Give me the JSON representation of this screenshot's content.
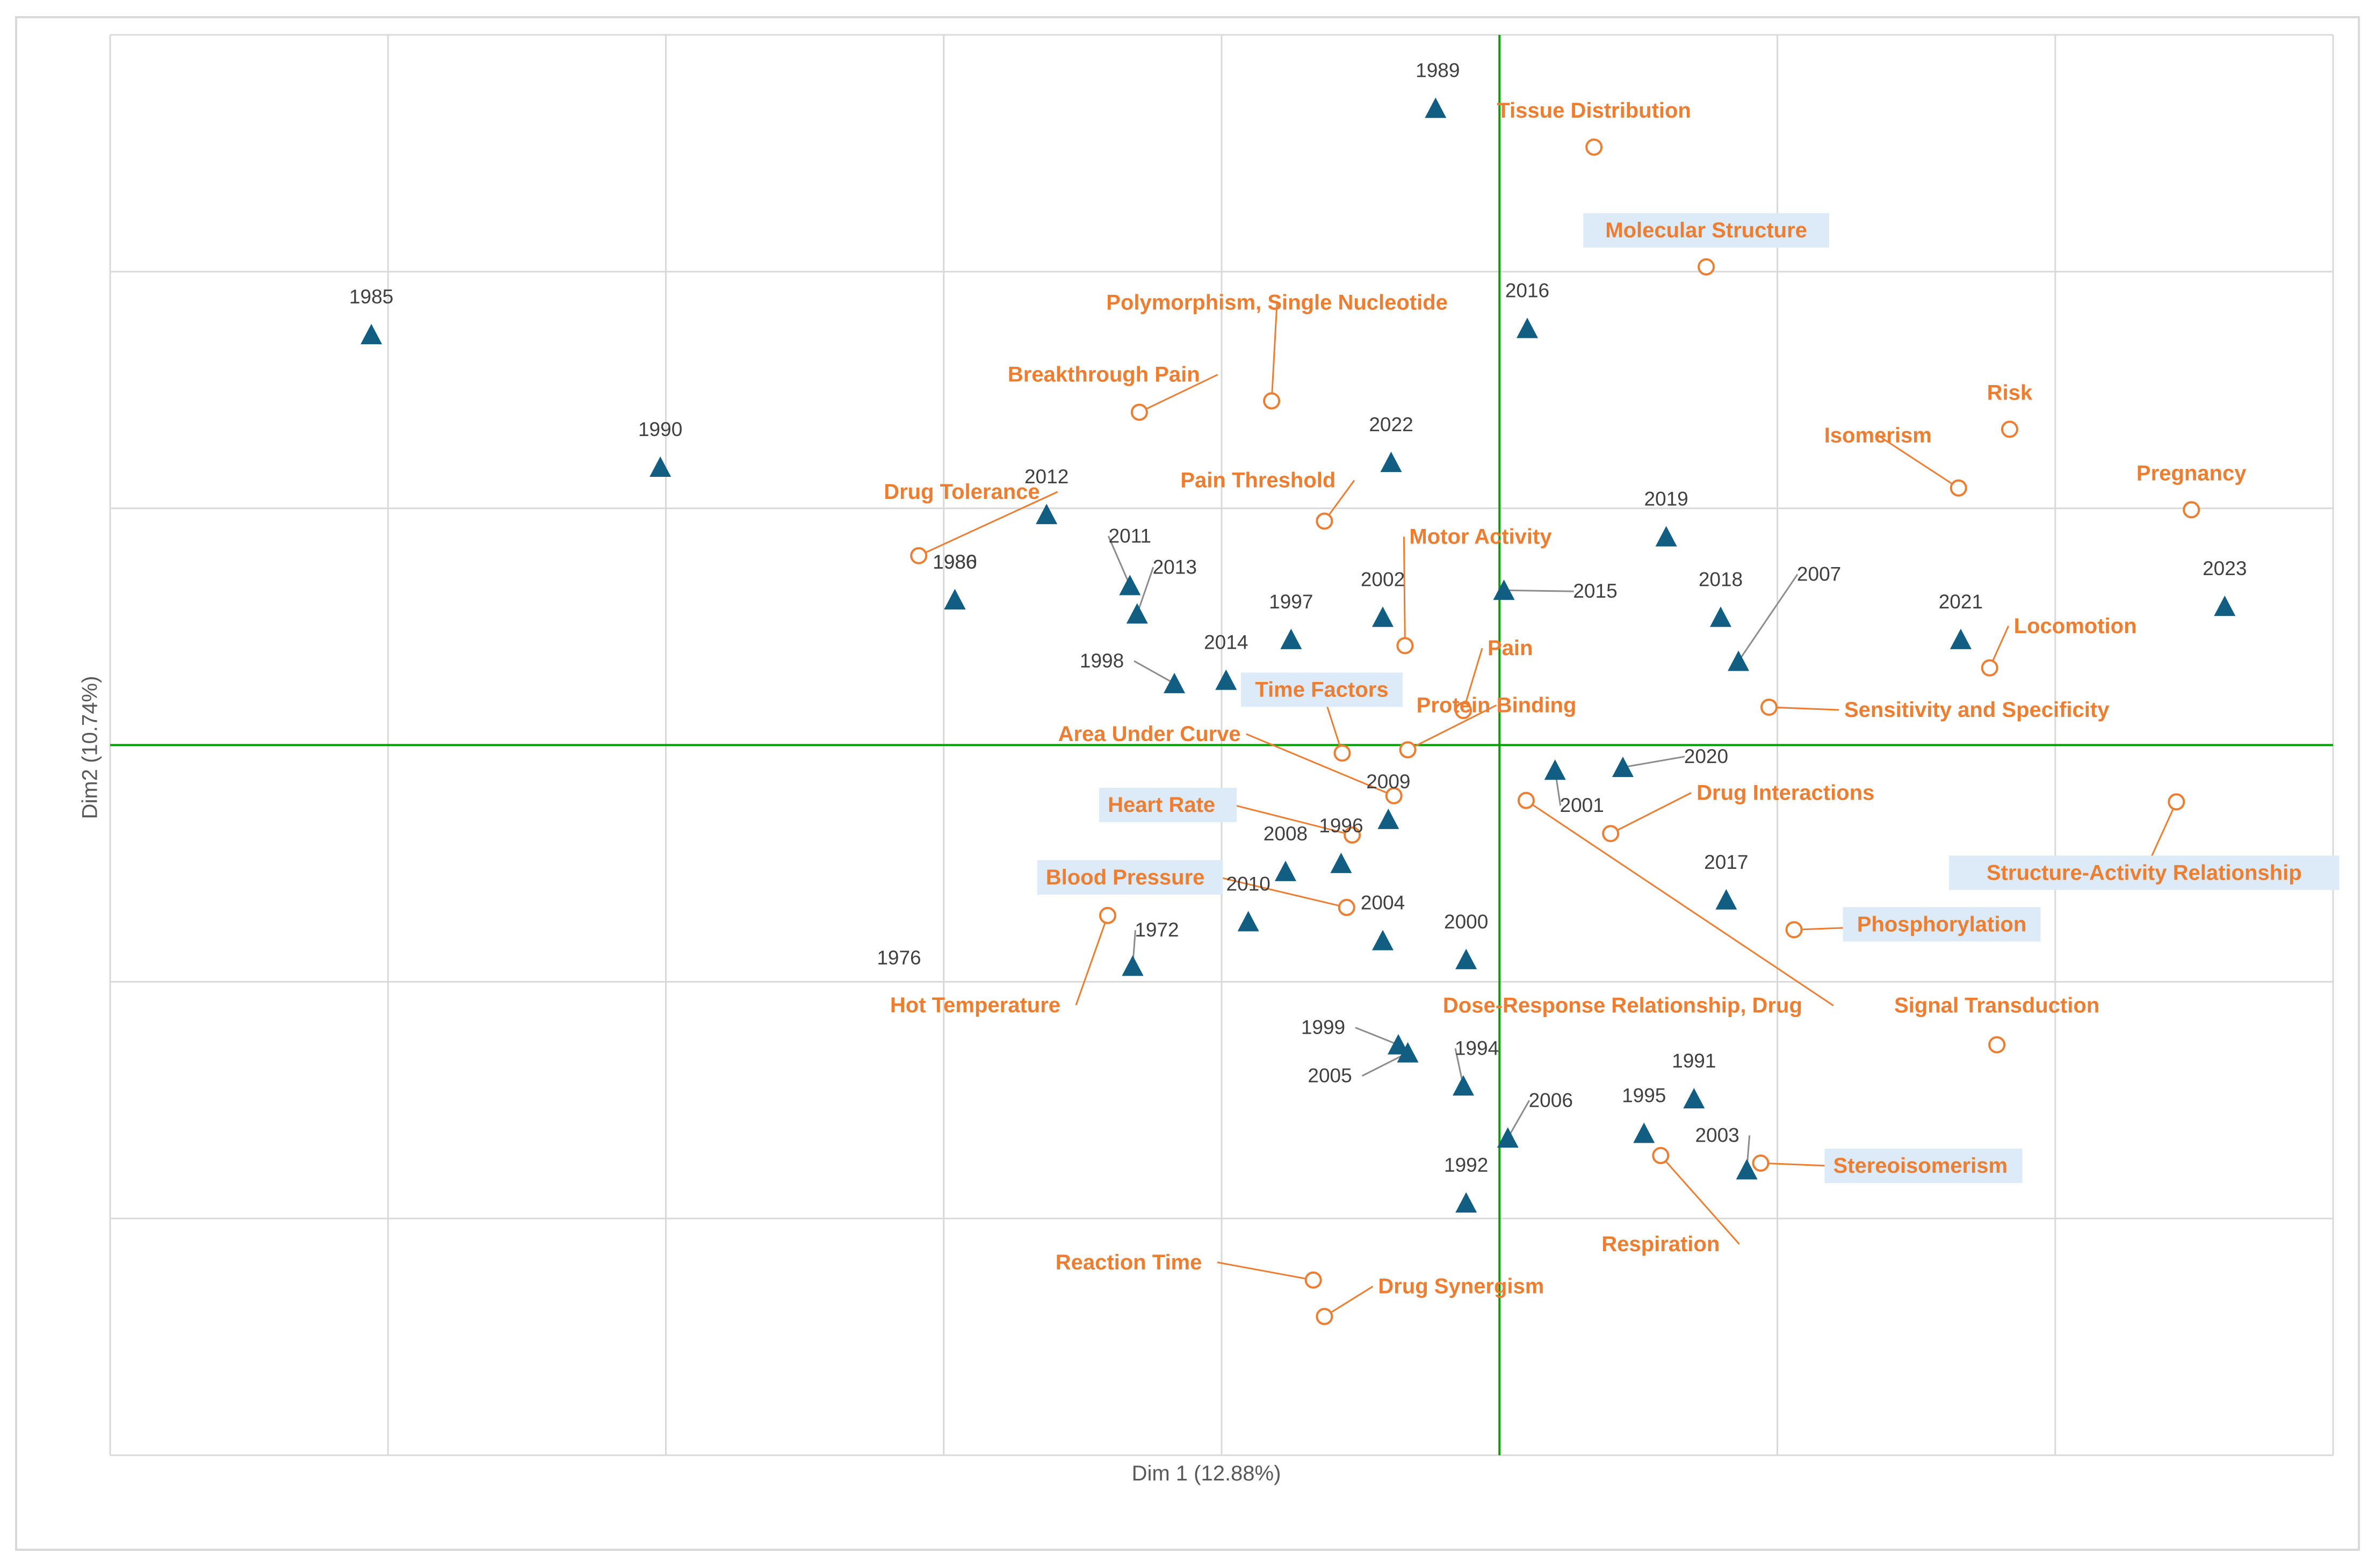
{
  "chart_data": {
    "type": "scatter",
    "xlabel": "Dim 1 (12.88%)",
    "ylabel": "Dim2 (10.74%)",
    "xlim": [
      -2.5,
      1.5
    ],
    "ylim": [
      -1.5,
      1.5
    ],
    "grid": true,
    "zero_lines": true,
    "colors": {
      "years": "#125e82",
      "terms": "#ed7d31",
      "zero_line": "#00a000",
      "grid": "#d9d9d9",
      "highlight_box": "#dcebf7"
    },
    "series": [
      {
        "name": "Years",
        "marker": "triangle",
        "points": [
          {
            "label": "1985",
            "x": -2.03,
            "y": 0.867
          },
          {
            "label": "1990",
            "x": -1.51,
            "y": 0.587
          },
          {
            "label": "1989",
            "x": -0.115,
            "y": 1.345
          },
          {
            "label": "1986",
            "x": -0.98,
            "y": 0.307
          },
          {
            "label": "1980",
            "x": -0.98,
            "y": 0.307
          },
          {
            "label": "2016",
            "x": 0.05,
            "y": 0.88
          },
          {
            "label": "2022",
            "x": -0.195,
            "y": 0.597
          },
          {
            "label": "2012",
            "x": -0.815,
            "y": 0.487
          },
          {
            "label": "2011",
            "x": -0.665,
            "y": 0.337
          },
          {
            "label": "2013",
            "x": -0.652,
            "y": 0.277
          },
          {
            "label": "1997",
            "x": -0.375,
            "y": 0.223
          },
          {
            "label": "2002",
            "x": -0.21,
            "y": 0.27
          },
          {
            "label": "2015",
            "x": 0.008,
            "y": 0.327
          },
          {
            "label": "2019",
            "x": 0.3,
            "y": 0.44
          },
          {
            "label": "2018",
            "x": 0.398,
            "y": 0.27
          },
          {
            "label": "2007",
            "x": 0.43,
            "y": 0.177
          },
          {
            "label": "2021",
            "x": 0.83,
            "y": 0.223
          },
          {
            "label": "2023",
            "x": 1.305,
            "y": 0.293
          },
          {
            "label": "1998",
            "x": -0.585,
            "y": 0.13
          },
          {
            "label": "2014",
            "x": -0.492,
            "y": 0.137
          },
          {
            "label": "2001",
            "x": 0.1,
            "y": -0.053
          },
          {
            "label": "2020",
            "x": 0.222,
            "y": -0.047
          },
          {
            "label": "2009",
            "x": -0.2,
            "y": -0.157
          },
          {
            "label": "1996",
            "x": -0.285,
            "y": -0.25
          },
          {
            "label": "2008",
            "x": -0.385,
            "y": -0.267
          },
          {
            "label": "2017",
            "x": 0.408,
            "y": -0.327
          },
          {
            "label": "2010",
            "x": -0.452,
            "y": -0.373
          },
          {
            "label": "2004",
            "x": -0.21,
            "y": -0.413
          },
          {
            "label": "2000",
            "x": -0.06,
            "y": -0.453
          },
          {
            "label": "1972",
            "x": -0.66,
            "y": -0.467
          },
          {
            "label": "1976",
            "x": -0.66,
            "y": -0.467
          },
          {
            "label": "1999",
            "x": -0.182,
            "y": -0.633
          },
          {
            "label": "2005",
            "x": -0.165,
            "y": -0.65
          },
          {
            "label": "1994",
            "x": -0.065,
            "y": -0.72
          },
          {
            "label": "2006",
            "x": 0.015,
            "y": -0.83
          },
          {
            "label": "1991",
            "x": 0.35,
            "y": -0.747
          },
          {
            "label": "1995",
            "x": 0.26,
            "y": -0.82
          },
          {
            "label": "2003",
            "x": 0.445,
            "y": -0.897
          },
          {
            "label": "1992",
            "x": -0.06,
            "y": -0.967
          }
        ]
      },
      {
        "name": "Terms",
        "marker": "circle",
        "points": [
          {
            "label": "Tissue Distribution",
            "x": 0.17,
            "y": 1.263
          },
          {
            "label": "Molecular Structure",
            "x": 0.372,
            "y": 1.01,
            "highlight": true
          },
          {
            "label": "Polymorphism, Single Nucleotide",
            "x": -0.41,
            "y": 0.727
          },
          {
            "label": "Breakthrough Pain",
            "x": -0.648,
            "y": 0.703
          },
          {
            "label": "Risk",
            "x": 0.918,
            "y": 0.667
          },
          {
            "label": "Isomerism",
            "x": 0.826,
            "y": 0.543
          },
          {
            "label": "Pregnancy",
            "x": 1.245,
            "y": 0.497
          },
          {
            "label": "Drug Tolerance",
            "x": -1.045,
            "y": 0.4
          },
          {
            "label": "Pain Threshold",
            "x": -0.315,
            "y": 0.473
          },
          {
            "label": "Motor Activity",
            "x": -0.17,
            "y": 0.21
          },
          {
            "label": "Pain",
            "x": -0.065,
            "y": 0.073
          },
          {
            "label": "Locomotion",
            "x": 0.882,
            "y": 0.163
          },
          {
            "label": "Protein Binding",
            "x": -0.165,
            "y": -0.01
          },
          {
            "label": "Sensitivity and Specificity",
            "x": 0.485,
            "y": 0.08
          },
          {
            "label": "Time Factors",
            "x": -0.283,
            "y": -0.017,
            "highlight": true
          },
          {
            "label": "Area Under Curve",
            "x": -0.19,
            "y": -0.107
          },
          {
            "label": "Dose-Response Relationship, Drug",
            "x": 0.048,
            "y": -0.117
          },
          {
            "label": "Drug Interactions",
            "x": 0.2,
            "y": -0.187
          },
          {
            "label": "Structure-Activity Relationship",
            "x": 1.218,
            "y": -0.12,
            "highlight": true
          },
          {
            "label": "Heart Rate",
            "x": -0.265,
            "y": -0.19,
            "highlight": true
          },
          {
            "label": "Blood Pressure",
            "x": -0.275,
            "y": -0.343,
            "highlight": true
          },
          {
            "label": "Phosphorylation",
            "x": 0.53,
            "y": -0.39,
            "highlight": true
          },
          {
            "label": "Hot Temperature",
            "x": -0.705,
            "y": -0.36
          },
          {
            "label": "Signal Transduction",
            "x": 0.895,
            "y": -0.633
          },
          {
            "label": "Stereoisomerism",
            "x": 0.47,
            "y": -0.883,
            "highlight": true
          },
          {
            "label": "Respiration",
            "x": 0.29,
            "y": -0.867
          },
          {
            "label": "Reaction Time",
            "x": -0.335,
            "y": -1.13
          },
          {
            "label": "Drug Synergism",
            "x": -0.315,
            "y": -1.207
          }
        ]
      }
    ]
  }
}
